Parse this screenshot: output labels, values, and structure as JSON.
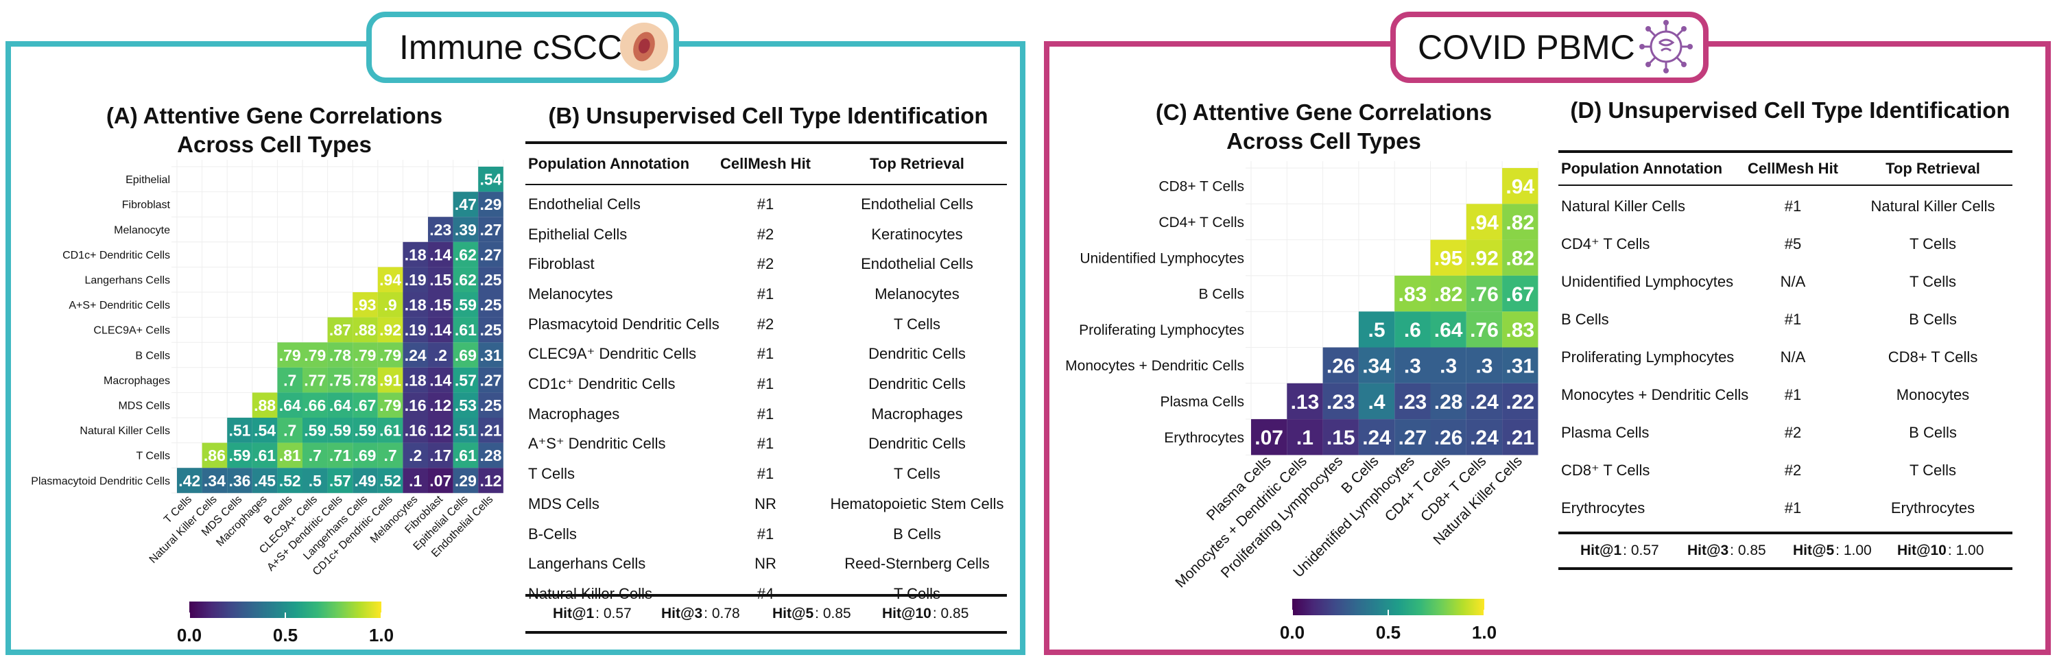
{
  "colors": {
    "immune": "#40b9c2",
    "covid": "#c23c7c"
  },
  "panels": {
    "immune": {
      "title": "Immune cSCC",
      "icon": "skin-lesion-icon"
    },
    "covid": {
      "title": "COVID PBMC",
      "icon": "virus-icon"
    }
  },
  "chart_data": [
    {
      "id": "A",
      "type": "heatmap",
      "title_line1": "(A) Attentive Gene Correlations",
      "title_line2": "Across Cell Types",
      "row_labels": [
        "Epithelial",
        "Fibroblast",
        "Melanocyte",
        "CD1c+ Dendritic Cells",
        "Langerhans Cells",
        "A+S+ Dendritic Cells",
        "CLEC9A+ Cells",
        "B Cells",
        "Macrophages",
        "MDS Cells",
        "Natural Killer Cells",
        "T Cells",
        "Plasmacytoid Dendritic Cells"
      ],
      "col_labels": [
        "T Cells",
        "Natural Killer Cells",
        "MDS Cells",
        "Macrophages",
        "B Cells",
        "CLEC9A+ Cells",
        "A+S+ Dendritic Cells",
        "Langerhans Cells",
        "CD1c+ Dendritic Cells",
        "Melanocytes",
        "Fibroblast",
        "Epithelial Cells",
        "Endothelial Cells"
      ],
      "rows": [
        [
          ".54"
        ],
        [
          ".47",
          ".29"
        ],
        [
          ".23",
          ".39",
          ".27"
        ],
        [
          ".18",
          ".14",
          ".62",
          ".27"
        ],
        [
          ".94",
          ".19",
          ".15",
          ".62",
          ".25"
        ],
        [
          ".93",
          ".9",
          ".18",
          ".15",
          ".59",
          ".25"
        ],
        [
          ".87",
          ".88",
          ".92",
          ".19",
          ".14",
          ".61",
          ".25"
        ],
        [
          ".79",
          ".79",
          ".78",
          ".79",
          ".79",
          ".24",
          ".2",
          ".69",
          ".31"
        ],
        [
          ".7",
          ".77",
          ".75",
          ".78",
          ".91",
          ".18",
          ".14",
          ".57",
          ".27"
        ],
        [
          ".88",
          ".64",
          ".66",
          ".64",
          ".67",
          ".79",
          ".16",
          ".12",
          ".53",
          ".25"
        ],
        [
          ".51",
          ".54",
          ".7",
          ".59",
          ".59",
          ".59",
          ".61",
          ".16",
          ".12",
          ".51",
          ".21"
        ],
        [
          ".86",
          ".59",
          ".61",
          ".81",
          ".7",
          ".71",
          ".69",
          ".7",
          ".2",
          ".17",
          ".61",
          ".28"
        ],
        [
          ".42",
          ".34",
          ".36",
          ".45",
          ".52",
          ".5",
          ".57",
          ".49",
          ".52",
          ".1",
          ".07",
          ".29",
          ".12"
        ]
      ],
      "colorbar": {
        "min": 0.0,
        "max": 1.0,
        "ticks": [
          "0.0",
          "0.5",
          "1.0"
        ]
      }
    },
    {
      "id": "C",
      "type": "heatmap",
      "title_line1": "(C) Attentive Gene Correlations",
      "title_line2": "Across Cell Types",
      "row_labels": [
        "CD8+ T Cells",
        "CD4+ T Cells",
        "Unidentified Lymphocytes",
        "B Cells",
        "Proliferating Lymphocytes",
        "Monocytes + Dendritic Cells",
        "Plasma Cells",
        "Erythrocytes"
      ],
      "col_labels": [
        "Plasma Cells",
        "Monocytes + Dendritic Cells",
        "Proliferating Lymphocytes",
        "B Cells",
        "Unidentified Lymphocytes",
        "CD4+ T Cells",
        "CD8+ T Cells",
        "Natural Killer Cells"
      ],
      "rows": [
        [
          ".94"
        ],
        [
          ".94",
          ".82"
        ],
        [
          ".95",
          ".92",
          ".82"
        ],
        [
          ".83",
          ".82",
          ".76",
          ".67"
        ],
        [
          ".5",
          ".6",
          ".64",
          ".76",
          ".83"
        ],
        [
          ".26",
          ".34",
          ".3",
          ".3",
          ".3",
          ".31"
        ],
        [
          ".13",
          ".23",
          ".4",
          ".23",
          ".28",
          ".24",
          ".22"
        ],
        [
          ".07",
          ".1",
          ".15",
          ".24",
          ".27",
          ".26",
          ".24",
          ".21"
        ]
      ],
      "colorbar": {
        "min": 0.0,
        "max": 1.0,
        "ticks": [
          "0.0",
          "0.5",
          "1.0"
        ]
      }
    },
    {
      "id": "B",
      "type": "table",
      "title": "(B) Unsupervised Cell Type Identification",
      "headers": [
        "Population Annotation",
        "CellMesh Hit",
        "Top Retrieval"
      ],
      "rows": [
        [
          "Endothelial Cells",
          "#1",
          "Endothelial Cells"
        ],
        [
          "Epithelial Cells",
          "#2",
          "Keratinocytes"
        ],
        [
          "Fibroblast",
          "#2",
          "Endothelial Cells"
        ],
        [
          "Melanocytes",
          "#1",
          "Melanocytes"
        ],
        [
          "Plasmacytoid Dendritic Cells",
          "#2",
          "T Cells"
        ],
        [
          "CLEC9A⁺ Dendritic Cells",
          "#1",
          "Dendritic Cells"
        ],
        [
          "CD1c⁺ Dendritic Cells",
          "#1",
          "Dendritic Cells"
        ],
        [
          "Macrophages",
          "#1",
          "Macrophages"
        ],
        [
          "A⁺S⁺ Dendritic Cells",
          "#1",
          "Dendritic Cells"
        ],
        [
          "T Cells",
          "#1",
          "T Cells"
        ],
        [
          "MDS Cells",
          "NR",
          "Hematopoietic Stem Cells"
        ],
        [
          "B-Cells",
          "#1",
          "B Cells"
        ],
        [
          "Langerhans Cells",
          "NR",
          "Reed-Sternberg Cells"
        ],
        [
          "Natural Killer Cells",
          "#4",
          "T Cells"
        ]
      ],
      "footer": [
        {
          "label": "Hit@1",
          "value": ": 0.57"
        },
        {
          "label": "Hit@3",
          "value": ": 0.78"
        },
        {
          "label": "Hit@5",
          "value": ": 0.85"
        },
        {
          "label": "Hit@10",
          "value": ": 0.85"
        }
      ]
    },
    {
      "id": "D",
      "type": "table",
      "title": "(D) Unsupervised Cell Type Identification",
      "headers": [
        "Population Annotation",
        "CellMesh Hit",
        "Top Retrieval"
      ],
      "rows": [
        [
          "Natural Killer Cells",
          "#1",
          "Natural Killer Cells"
        ],
        [
          "CD4⁺ T Cells",
          "#5",
          "T Cells"
        ],
        [
          "Unidentified Lymphocytes",
          "N/A",
          "T Cells"
        ],
        [
          "B Cells",
          "#1",
          "B Cells"
        ],
        [
          "Proliferating Lymphocytes",
          "N/A",
          "CD8+ T Cells"
        ],
        [
          "Monocytes + Dendritic Cells",
          "#1",
          "Monocytes"
        ],
        [
          "Plasma Cells",
          "#2",
          "B Cells"
        ],
        [
          "CD8⁺ T Cells",
          "#2",
          "T Cells"
        ],
        [
          "Erythrocytes",
          "#1",
          "Erythrocytes"
        ]
      ],
      "footer": [
        {
          "label": "Hit@1",
          "value": ": 0.57"
        },
        {
          "label": "Hit@3",
          "value": ": 0.85"
        },
        {
          "label": "Hit@5",
          "value": ": 1.00"
        },
        {
          "label": "Hit@10",
          "value": ": 1.00"
        }
      ]
    }
  ]
}
